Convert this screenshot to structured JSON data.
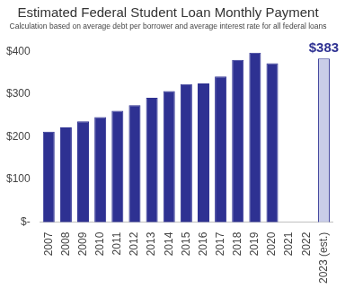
{
  "chart_data": {
    "type": "bar",
    "title": "Estimated Federal Student Loan Monthly Payment",
    "subtitle": "Calculation based on average debt per borrower and average interest rate for all federal loans",
    "categories": [
      "2007",
      "2008",
      "2009",
      "2010",
      "2011",
      "2012",
      "2013",
      "2014",
      "2015",
      "2016",
      "2017",
      "2018",
      "2019",
      "2020",
      "2021",
      "2022",
      "2023 (est.)"
    ],
    "values": [
      212,
      222,
      236,
      246,
      261,
      274,
      291,
      307,
      323,
      325,
      341,
      380,
      397,
      372,
      null,
      null,
      383
    ],
    "colors": [
      "#2e3192",
      "#2e3192",
      "#2e3192",
      "#2e3192",
      "#2e3192",
      "#2e3192",
      "#2e3192",
      "#2e3192",
      "#2e3192",
      "#2e3192",
      "#2e3192",
      "#2e3192",
      "#2e3192",
      "#2e3192",
      "#2e3192",
      "#2e3192",
      "#c9cde8"
    ],
    "data_labels": true,
    "value_labels": [
      null,
      null,
      null,
      null,
      null,
      null,
      null,
      null,
      null,
      null,
      null,
      null,
      null,
      null,
      null,
      null,
      "$383"
    ],
    "ylim": [
      0,
      400
    ],
    "yticks": [
      {
        "value": 0,
        "label": "$-"
      },
      {
        "value": 100,
        "label": "$100"
      },
      {
        "value": 200,
        "label": "$200"
      },
      {
        "value": 300,
        "label": "$300"
      },
      {
        "value": 400,
        "label": "$400"
      }
    ],
    "grid": false
  }
}
